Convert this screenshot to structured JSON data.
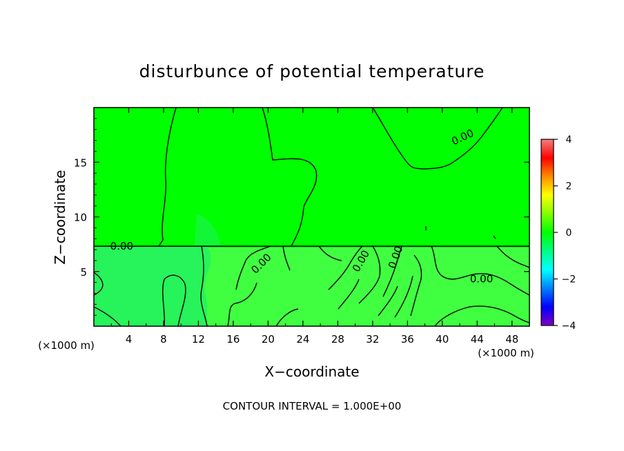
{
  "chart_data": {
    "type": "heatmap",
    "title": "disturbunce of potential temperature",
    "xlabel": "X−coordinate",
    "ylabel": "Z−coordinate",
    "x_unit_left": "(×1000 m)",
    "x_unit_right": "(×1000 m)",
    "footer": "CONTOUR INTERVAL = 1.000E+00",
    "xlim": [
      0,
      50
    ],
    "ylim": [
      0,
      20
    ],
    "x_ticks": [
      4,
      8,
      12,
      16,
      20,
      24,
      28,
      32,
      36,
      40,
      44,
      48
    ],
    "y_ticks": [
      5,
      10,
      15
    ],
    "colorbar": {
      "range": [
        -4,
        4
      ],
      "ticks": [
        4,
        2,
        0,
        -2,
        -4
      ],
      "colors": [
        "#f08080",
        "#ff0000",
        "#ff8c00",
        "#ffff00",
        "#80ff00",
        "#00ff00",
        "#00ff80",
        "#00ffff",
        "#0080ff",
        "#0000ff",
        "#8000c0"
      ]
    },
    "field": {
      "background_color": "#00ff00",
      "lower_layer_color": "#40ff40",
      "cool_patch_color": "#20f060",
      "lower_layer_top": 7.2
    },
    "contour_labels": [
      {
        "text": "0.00",
        "x": 3.2,
        "z": 7.0,
        "angle": 0
      },
      {
        "text": "0.00",
        "x": 19.5,
        "z": 5.5,
        "angle": -45
      },
      {
        "text": "0.00",
        "x": 31.0,
        "z": 5.8,
        "angle": -60
      },
      {
        "text": "0.00",
        "x": 35.0,
        "z": 6.2,
        "angle": -70
      },
      {
        "text": "0.00",
        "x": 42.5,
        "z": 17.0,
        "angle": -25
      },
      {
        "text": "0.00",
        "x": 44.5,
        "z": 4.0,
        "angle": 0
      }
    ]
  }
}
